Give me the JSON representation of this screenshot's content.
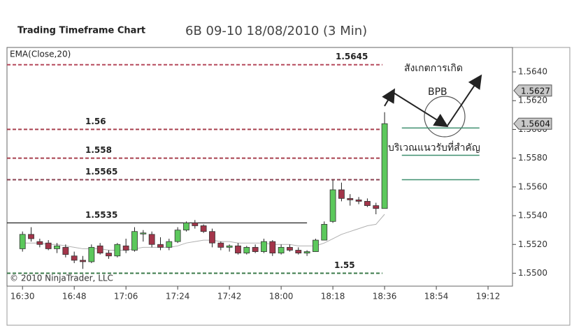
{
  "chart_data": {
    "type": "candlestick",
    "title": "Trading Timeframe Chart",
    "subtitle": "6B 09-10  18/08/2010 (3 Min)",
    "indicator_label": "EMA(Close,20)",
    "copyright": "© 2010 NinjaTrader, LLC",
    "x": [
      990,
      993,
      996,
      999,
      1002,
      1005,
      1008,
      1011,
      1014,
      1017,
      1020,
      1023,
      1026,
      1029,
      1032,
      1035,
      1038,
      1041,
      1044,
      1047,
      1050,
      1053,
      1056,
      1059,
      1062,
      1065,
      1068,
      1071,
      1074,
      1077,
      1080,
      1083,
      1086,
      1089,
      1092,
      1095,
      1098,
      1101,
      1104,
      1107,
      1110,
      1113,
      1116
    ],
    "open": [
      1.5517,
      1.5527,
      1.5522,
      1.5521,
      1.5517,
      1.5518,
      1.5512,
      1.5509,
      1.5508,
      1.5519,
      1.5514,
      1.5512,
      1.5519,
      1.5516,
      1.5528,
      1.5527,
      1.552,
      1.5518,
      1.5522,
      1.553,
      1.5535,
      1.5533,
      1.5529,
      1.5521,
      1.5518,
      1.5519,
      1.5514,
      1.5518,
      1.5515,
      1.5522,
      1.5514,
      1.5518,
      1.5516,
      1.5514,
      1.5515,
      1.5523,
      1.5536,
      1.5558,
      1.5552,
      1.5551,
      1.555,
      1.5547,
      1.5545
    ],
    "high": [
      1.5529,
      1.5532,
      1.5524,
      1.5523,
      1.5521,
      1.552,
      1.5515,
      1.5512,
      1.552,
      1.5521,
      1.5516,
      1.5521,
      1.5524,
      1.5532,
      1.553,
      1.5529,
      1.5525,
      1.5524,
      1.5532,
      1.5536,
      1.5537,
      1.5534,
      1.5531,
      1.5522,
      1.552,
      1.5521,
      1.5519,
      1.552,
      1.5524,
      1.5523,
      1.552,
      1.552,
      1.5518,
      1.5516,
      1.5524,
      1.5536,
      1.5565,
      1.5563,
      1.5555,
      1.5553,
      1.5552,
      1.5549,
      1.5612
    ],
    "low": [
      1.5515,
      1.5522,
      1.5518,
      1.5516,
      1.5514,
      1.5511,
      1.5507,
      1.5503,
      1.5507,
      1.5513,
      1.551,
      1.5511,
      1.5514,
      1.5515,
      1.5522,
      1.5518,
      1.5516,
      1.5516,
      1.5521,
      1.5529,
      1.5531,
      1.5528,
      1.5518,
      1.5516,
      1.5515,
      1.5513,
      1.5513,
      1.5514,
      1.5514,
      1.5512,
      1.5513,
      1.5515,
      1.5513,
      1.5512,
      1.5515,
      1.5523,
      1.5535,
      1.555,
      1.5547,
      1.5548,
      1.5546,
      1.5541,
      1.5545
    ],
    "close": [
      1.5527,
      1.5524,
      1.552,
      1.5517,
      1.5519,
      1.5513,
      1.5509,
      1.5508,
      1.5518,
      1.5514,
      1.5512,
      1.552,
      1.5516,
      1.5529,
      1.5528,
      1.552,
      1.5518,
      1.5522,
      1.553,
      1.5535,
      1.5533,
      1.5529,
      1.5521,
      1.5518,
      1.5519,
      1.5514,
      1.5518,
      1.5515,
      1.5522,
      1.5514,
      1.5518,
      1.5516,
      1.5514,
      1.5515,
      1.5523,
      1.5534,
      1.5558,
      1.5552,
      1.5551,
      1.555,
      1.5547,
      1.5545,
      1.5604
    ],
    "up_color": "#5cc85c",
    "down_color": "#a3354a",
    "ema": {
      "color": "#b0b0b0",
      "values": [
        1.5521,
        1.5521,
        1.5521,
        1.552,
        1.552,
        1.5519,
        1.5518,
        1.5517,
        1.5517,
        1.5517,
        1.5516,
        1.5516,
        1.5516,
        1.5517,
        1.5518,
        1.5518,
        1.5518,
        1.5518,
        1.5519,
        1.5521,
        1.5522,
        1.5523,
        1.5523,
        1.5522,
        1.5522,
        1.5521,
        1.5521,
        1.5521,
        1.5521,
        1.552,
        1.552,
        1.552,
        1.5519,
        1.5519,
        1.5519,
        1.5521,
        1.5524,
        1.5527,
        1.5529,
        1.5531,
        1.5533,
        1.5534,
        1.5541
      ]
    },
    "levels": [
      {
        "value": 1.5645,
        "color": "#b5495b",
        "dash": true
      },
      {
        "value": 1.56,
        "color": "#a8404e",
        "dash": true
      },
      {
        "value": 1.558,
        "color": "#a8404e",
        "dash": true
      },
      {
        "value": 1.5565,
        "color": "#8a4050",
        "dash": true
      },
      {
        "value": 1.5535,
        "color": "#222222",
        "dash": false,
        "x_end": 1089
      },
      {
        "value": 1.55,
        "color": "#3a7a4a",
        "dash": true
      }
    ],
    "support": {
      "values": [
        1.5601,
        1.5582,
        1.5565
      ],
      "x_range": [
        1122,
        1149
      ],
      "color": "#3f8f6f"
    },
    "price_markers": [
      1.5627,
      1.5604
    ],
    "annotations": [
      "สังเกตการเกิด",
      "BPB",
      "บริเวณแนวรับที่สำคัญ"
    ],
    "xlim": [
      984.6,
      1160.5
    ],
    "xticks": [
      {
        "value": 990,
        "label": "16:30"
      },
      {
        "value": 1008,
        "label": "16:48"
      },
      {
        "value": 1026,
        "label": "17:06"
      },
      {
        "value": 1044,
        "label": "17:24"
      },
      {
        "value": 1062,
        "label": "17:42"
      },
      {
        "value": 1080,
        "label": "18:00"
      },
      {
        "value": 1098,
        "label": "18:18"
      },
      {
        "value": 1116,
        "label": "18:36"
      },
      {
        "value": 1134,
        "label": "18:54"
      },
      {
        "value": 1152,
        "label": "19:12"
      }
    ],
    "ylim": [
      1.5491,
      1.5657
    ],
    "yticks": [
      {
        "value": 1.55,
        "label": "1.5500"
      },
      {
        "value": 1.552,
        "label": "1.5520"
      },
      {
        "value": 1.554,
        "label": "1.5540"
      },
      {
        "value": 1.556,
        "label": "1.5560"
      },
      {
        "value": 1.558,
        "label": "1.5580"
      },
      {
        "value": 1.56,
        "label": "1.5600"
      },
      {
        "value": 1.562,
        "label": "1.5620"
      },
      {
        "value": 1.564,
        "label": "1.5640"
      }
    ]
  }
}
